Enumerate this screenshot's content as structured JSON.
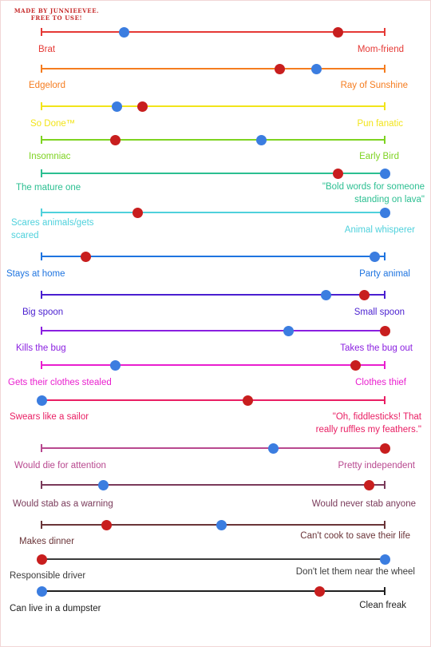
{
  "credit": "MADE BY JUNNIEEVEE.\nFREE TO USE!",
  "rows": [
    {
      "left": "Brat",
      "right": "Mom-friend",
      "color": "#e53935",
      "leftCap": true,
      "rightCap": true,
      "blue": 0.24,
      "red": 0.865
    },
    {
      "left": "Edgelord",
      "right": "Ray of Sunshine",
      "color": "#f57c1f",
      "leftCap": true,
      "rightCap": true,
      "blue": 0.8,
      "red": 0.695
    },
    {
      "left": "So Done™",
      "right": "Pun fanatic",
      "color": "#f2e41a",
      "leftCap": true,
      "rightCap": true,
      "blue": 0.22,
      "red": 0.295
    },
    {
      "left": "Insomniac",
      "right": "Early Bird",
      "color": "#7ed321",
      "leftCap": true,
      "rightCap": true,
      "blue": 0.64,
      "red": 0.215
    },
    {
      "left": "The mature one",
      "right": "\"Bold words for someone\nstanding on lava\"",
      "color": "#2bbf91",
      "leftCap": true,
      "rightCap": false,
      "blue": 1.0,
      "red": 0.865
    },
    {
      "left": "Scares animals/gets\nscared",
      "right": "Animal whisperer",
      "color": "#4fd1dc",
      "leftCap": true,
      "rightCap": false,
      "blue": 1.0,
      "red": 0.28
    },
    {
      "left": "Stays at home",
      "right": "Party animal",
      "color": "#1e74e0",
      "leftCap": true,
      "rightCap": true,
      "blue": 0.97,
      "red": 0.13
    },
    {
      "left": "Big spoon",
      "right": "Small spoon",
      "color": "#4a1fd0",
      "leftCap": true,
      "rightCap": true,
      "blue": 0.83,
      "red": 0.94
    },
    {
      "left": "Kills the bug",
      "right": "Takes the bug out",
      "color": "#8a1fe0",
      "leftCap": true,
      "rightCap": false,
      "blue": 0.72,
      "red": 1.0
    },
    {
      "left": "Gets their clothes stealed",
      "right": "Clothes thief",
      "color": "#e91ecf",
      "leftCap": true,
      "rightCap": true,
      "blue": 0.215,
      "red": 0.915
    },
    {
      "left": "Swears like a sailor",
      "right": "\"Oh, fiddlesticks! That\nreally ruffles my feathers.\"",
      "color": "#e91e63",
      "leftCap": false,
      "rightCap": true,
      "blue": 0.0,
      "red": 0.6
    },
    {
      "left": "Would die for attention",
      "right": "Pretty independent",
      "color": "#b8488f",
      "leftCap": true,
      "rightCap": false,
      "blue": 0.675,
      "red": 1.0
    },
    {
      "left": "Would stab as a warning",
      "right": "Would never stab anyone",
      "color": "#7a3a5a",
      "leftCap": true,
      "rightCap": true,
      "blue": 0.18,
      "red": 0.955
    },
    {
      "left": "Makes dinner",
      "right": "Can't cook to save their life",
      "color": "#6a3438",
      "leftCap": true,
      "rightCap": true,
      "blue": 0.525,
      "red": 0.19
    },
    {
      "left": "Responsible driver",
      "right": "Don't let them near the wheel",
      "color": "#3b3b3b",
      "leftCap": false,
      "rightCap": false,
      "blue": 1.0,
      "red": 0.0
    },
    {
      "left": "Can live in a dumpster",
      "right": "Clean freak",
      "color": "#1f1f1f",
      "leftCap": false,
      "rightCap": true,
      "blue": 0.0,
      "red": 0.81
    }
  ]
}
